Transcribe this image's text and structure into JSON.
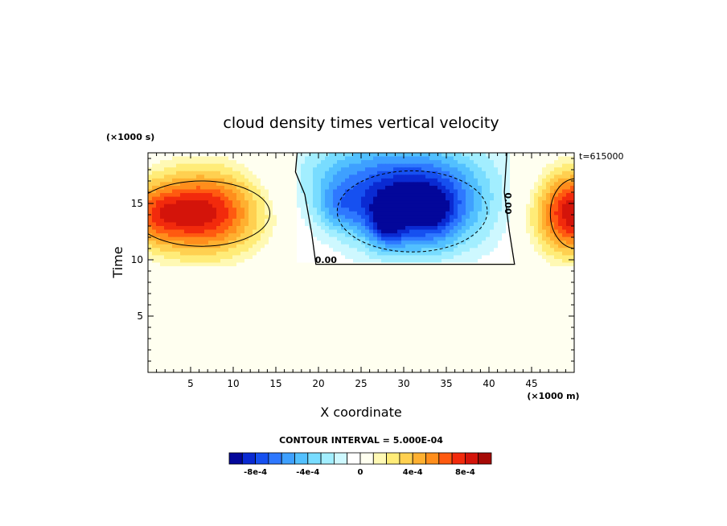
{
  "chart_data": {
    "type": "heatmap",
    "title": "cloud density times vertical velocity",
    "xlabel": "X coordinate",
    "ylabel": "Time",
    "x_unit": "(×1000 m)",
    "y_unit": "(×1000 s)",
    "annotation": "t=615000",
    "xlim": [
      0,
      50
    ],
    "ylim": [
      0,
      19.5
    ],
    "x_ticks": [
      5,
      10,
      15,
      20,
      25,
      30,
      35,
      40,
      45
    ],
    "y_ticks": [
      5,
      10,
      15
    ],
    "contour_label": "0.00",
    "contour_interval_text": "CONTOUR INTERVAL = 5.000E-04",
    "colorbar": {
      "levels": [
        -0.001,
        -0.0009,
        -0.0008,
        -0.0007,
        -0.0006,
        -0.0005,
        -0.0004,
        -0.0003,
        -0.0002,
        -0.0001,
        0,
        0.0001,
        0.0002,
        0.0003,
        0.0004,
        0.0005,
        0.0006,
        0.0007,
        0.0008,
        0.0009
      ],
      "colors": [
        "#03079a",
        "#0a2ad2",
        "#1650f0",
        "#2e78ff",
        "#3ea0ff",
        "#52c0ff",
        "#78dcff",
        "#a2eeff",
        "#cef8ff",
        "#ffffff",
        "#fffff0",
        "#fff9b4",
        "#ffec78",
        "#ffd050",
        "#ffb030",
        "#ff8e1c",
        "#ff5a10",
        "#f22a0c",
        "#d4140a",
        "#a60a06"
      ],
      "tick_labels": [
        "-8e-4",
        "-4e-4",
        "0",
        "4e-4",
        "8e-4"
      ],
      "tick_values": [
        -0.0008,
        -0.0004,
        0,
        0.0004,
        0.0008
      ]
    },
    "background_value": 0,
    "blobs": [
      {
        "cx": 6.5,
        "cy": 14.2,
        "sx": 4.6,
        "sy": 2.6,
        "amp": 0.00085
      },
      {
        "cx": 0.8,
        "cy": 14.0,
        "sx": 2.4,
        "sy": 1.9,
        "amp": 0.00035
      },
      {
        "cx": 50.0,
        "cy": 14.2,
        "sx": 3.2,
        "sy": 2.6,
        "amp": 0.0009
      },
      {
        "cx": 31.5,
        "cy": 14.3,
        "sx": 5.5,
        "sy": 2.8,
        "amp": -0.00075
      },
      {
        "cx": 28.0,
        "cy": 13.3,
        "sx": 1.6,
        "sy": 1.5,
        "amp": -0.0004
      },
      {
        "cx": 33.5,
        "cy": 14.2,
        "sx": 1.8,
        "sy": 1.6,
        "amp": -0.0002
      },
      {
        "cx": 22.5,
        "cy": 14.6,
        "sx": 2.0,
        "sy": 1.5,
        "amp": -0.00025
      },
      {
        "cx": 30.0,
        "cy": 17.5,
        "sx": 7.5,
        "sy": 2.8,
        "amp": -0.0004
      },
      {
        "cx": 22.0,
        "cy": 17.5,
        "sx": 4.0,
        "sy": 2.5,
        "amp": -0.00015
      }
    ]
  }
}
